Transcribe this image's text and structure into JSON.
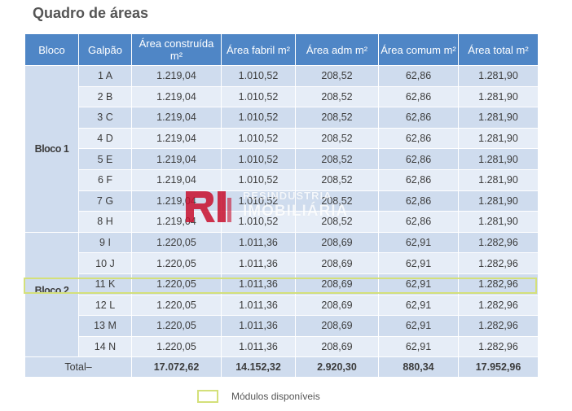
{
  "title": "Quadro de áreas",
  "headers": [
    "Bloco",
    "Galpão",
    "Área construída m²",
    "Área fabril m²",
    "Área adm m²",
    "Área comum m²",
    "Área total m²"
  ],
  "blocks": [
    {
      "name": "Bloco 1",
      "rows": [
        {
          "galpao": "1 A",
          "construida": "1.219,04",
          "fabril": "1.010,52",
          "adm": "208,52",
          "comum": "62,86",
          "total": "1.281,90"
        },
        {
          "galpao": "2 B",
          "construida": "1.219,04",
          "fabril": "1.010,52",
          "adm": "208,52",
          "comum": "62,86",
          "total": "1.281,90"
        },
        {
          "galpao": "3 C",
          "construida": "1.219,04",
          "fabril": "1.010,52",
          "adm": "208,52",
          "comum": "62,86",
          "total": "1.281,90"
        },
        {
          "galpao": "4 D",
          "construida": "1.219,04",
          "fabril": "1.010,52",
          "adm": "208,52",
          "comum": "62,86",
          "total": "1.281,90"
        },
        {
          "galpao": "5 E",
          "construida": "1.219,04",
          "fabril": "1.010,52",
          "adm": "208,52",
          "comum": "62,86",
          "total": "1.281,90"
        },
        {
          "galpao": "6 F",
          "construida": "1.219,04",
          "fabril": "1.010,52",
          "adm": "208,52",
          "comum": "62,86",
          "total": "1.281,90"
        },
        {
          "galpao": "7 G",
          "construida": "1.219,04",
          "fabril": "1.010,52",
          "adm": "208,52",
          "comum": "62,86",
          "total": "1.281,90"
        },
        {
          "galpao": "8 H",
          "construida": "1.219,04",
          "fabril": "1.010,52",
          "adm": "208,52",
          "comum": "62,86",
          "total": "1.281,90"
        }
      ]
    },
    {
      "name": "Bloco 2",
      "rows": [
        {
          "galpao": "9 I",
          "construida": "1.220,05",
          "fabril": "1.011,36",
          "adm": "208,69",
          "comum": "62,91",
          "total": "1.282,96"
        },
        {
          "galpao": "10 J",
          "construida": "1.220,05",
          "fabril": "1.011,36",
          "adm": "208,69",
          "comum": "62,91",
          "total": "1.282,96"
        },
        {
          "galpao": "11 K",
          "construida": "1.220,05",
          "fabril": "1.011,36",
          "adm": "208,69",
          "comum": "62,91",
          "total": "1.282,96",
          "available": true
        },
        {
          "galpao": "12 L",
          "construida": "1.220,05",
          "fabril": "1.011,36",
          "adm": "208,69",
          "comum": "62,91",
          "total": "1.282,96"
        },
        {
          "galpao": "13 M",
          "construida": "1.220,05",
          "fabril": "1.011,36",
          "adm": "208,69",
          "comum": "62,91",
          "total": "1.282,96"
        },
        {
          "galpao": "14 N",
          "construida": "1.220,05",
          "fabril": "1.011,36",
          "adm": "208,69",
          "comum": "62,91",
          "total": "1.282,96"
        }
      ]
    }
  ],
  "total": {
    "label": "Total–",
    "construida": "17.072,62",
    "fabril": "14.152,32",
    "adm": "2.920,30",
    "comum": "880,34",
    "total": "17.952,96"
  },
  "legend": {
    "label": "Módulos disponíveis"
  },
  "watermark": {
    "line1": "RESINDÚSTRIA",
    "line2": "IMOBILIÁRIA",
    "logo_text": "RI"
  },
  "colors": {
    "header": "#4f86c6",
    "row_dark": "#cfdcee",
    "row_light": "#e6edf7",
    "highlight": "#d4e07a",
    "logo_red": "#c8102e"
  }
}
